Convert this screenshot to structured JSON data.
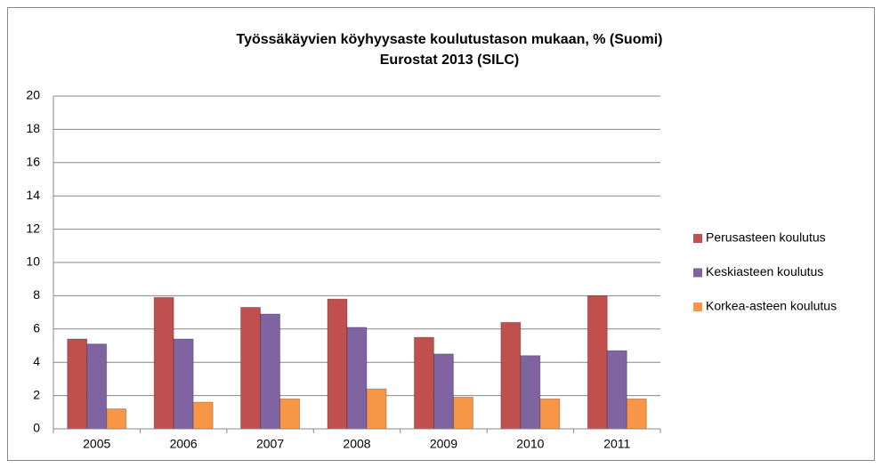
{
  "chart_data": {
    "type": "bar",
    "title": "Työssäkäyvien köyhyysaste koulutustason mukaan, % (Suomi)",
    "subtitle": "Eurostat 2013 (SILC)",
    "categories": [
      "2005",
      "2006",
      "2007",
      "2008",
      "2009",
      "2010",
      "2011"
    ],
    "series": [
      {
        "name": "Perusasteen koulutus",
        "color": "#c0504d",
        "values": [
          5.4,
          7.9,
          7.3,
          7.8,
          5.5,
          6.4,
          8.0
        ]
      },
      {
        "name": "Keskiasteen koulutus",
        "color": "#8064a2",
        "values": [
          5.1,
          5.4,
          6.9,
          6.1,
          4.5,
          4.4,
          4.7
        ]
      },
      {
        "name": "Korkea-asteen koulutus",
        "color": "#f79646",
        "values": [
          1.2,
          1.6,
          1.8,
          2.4,
          1.9,
          1.8,
          1.8
        ]
      }
    ],
    "ylim": [
      0,
      20
    ],
    "yticks": [
      0,
      2,
      4,
      6,
      8,
      10,
      12,
      14,
      16,
      18,
      20
    ],
    "grid": true,
    "legend": "right"
  }
}
